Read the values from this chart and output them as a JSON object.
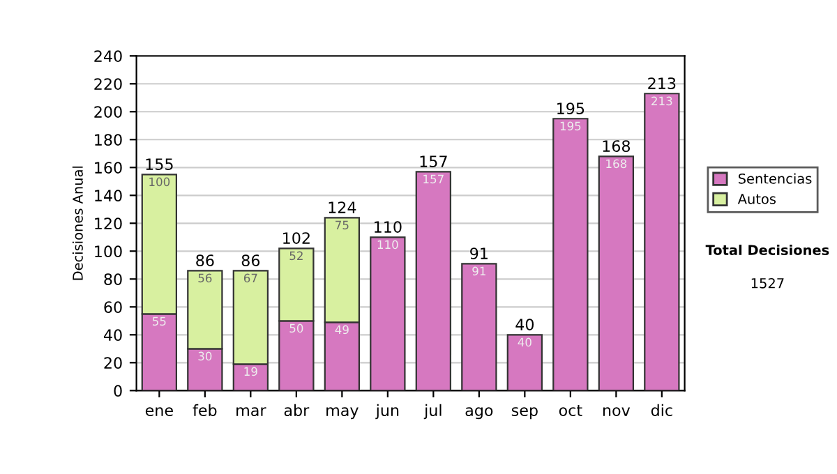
{
  "chart_data": {
    "type": "bar",
    "stacked": true,
    "ylabel": "Decisiones Anual",
    "categories": [
      "ene",
      "feb",
      "mar",
      "abr",
      "may",
      "jun",
      "jul",
      "ago",
      "sep",
      "oct",
      "nov",
      "dic"
    ],
    "series": [
      {
        "name": "Sentencias",
        "color": "#d678c0",
        "values": [
          55,
          30,
          19,
          50,
          49,
          110,
          157,
          91,
          40,
          195,
          168,
          213
        ]
      },
      {
        "name": "Autos",
        "color": "#d8f0a0",
        "values": [
          100,
          56,
          67,
          52,
          75,
          null,
          null,
          null,
          null,
          null,
          null,
          null
        ]
      }
    ],
    "totals": [
      "155",
      "86",
      "86",
      "102",
      "124",
      "110",
      "157",
      "91",
      "40",
      "195",
      "168",
      "213"
    ],
    "data_labels": true,
    "ylim": [
      0,
      240
    ],
    "yticks": [
      0,
      20,
      40,
      60,
      80,
      100,
      120,
      140,
      160,
      180,
      200,
      220,
      240
    ],
    "grid": "y",
    "legend": "right",
    "annotations": [
      "Total Decisiones",
      "1527"
    ]
  }
}
